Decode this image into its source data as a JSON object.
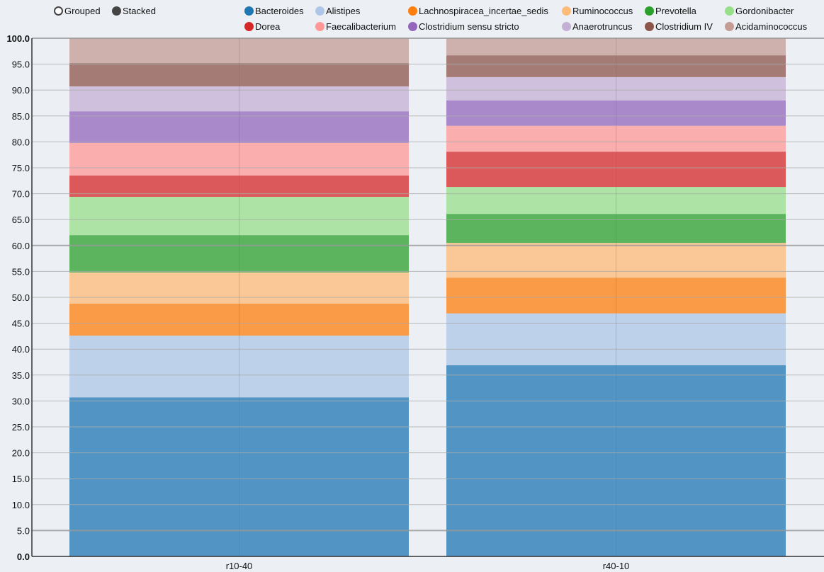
{
  "controls": {
    "grouped_label": "Grouped",
    "stacked_label": "Stacked",
    "selected": "Stacked"
  },
  "chart_data": {
    "type": "bar",
    "stacked": true,
    "categories": [
      "r10-40",
      "r40-10"
    ],
    "ylim": [
      0,
      100
    ],
    "yticks": [
      "0.0",
      "5.0",
      "10.0",
      "15.0",
      "20.0",
      "25.0",
      "30.0",
      "35.0",
      "40.0",
      "45.0",
      "50.0",
      "55.0",
      "60.0",
      "65.0",
      "70.0",
      "75.0",
      "80.0",
      "85.0",
      "90.0",
      "95.0",
      "100.0"
    ],
    "grid": true,
    "legend_position": "top",
    "series": [
      {
        "name": "Bacteroides",
        "color": "#1f77b4",
        "values": [
          30.7,
          36.9
        ]
      },
      {
        "name": "Alistipes",
        "color": "#aec7e8",
        "values": [
          11.9,
          10.0
        ]
      },
      {
        "name": "Lachnospiracea_incertae_sedis",
        "color": "#ff7f0e",
        "values": [
          6.2,
          6.9
        ]
      },
      {
        "name": "Ruminococcus",
        "color": "#ffbb78",
        "values": [
          6.0,
          6.7
        ]
      },
      {
        "name": "Prevotella",
        "color": "#2ca02c",
        "values": [
          7.2,
          5.6
        ]
      },
      {
        "name": "Gordonibacter",
        "color": "#98df8a",
        "values": [
          7.4,
          5.2
        ]
      },
      {
        "name": "Dorea",
        "color": "#d62728",
        "values": [
          4.1,
          6.8
        ]
      },
      {
        "name": "Faecalibacterium",
        "color": "#ff9896",
        "values": [
          6.3,
          5.0
        ]
      },
      {
        "name": "Clostridium sensu stricto",
        "color": "#9467bd",
        "values": [
          6.1,
          4.9
        ]
      },
      {
        "name": "Anaerotruncus",
        "color": "#c5b0d5",
        "values": [
          4.8,
          4.5
        ]
      },
      {
        "name": "Clostridium IV",
        "color": "#8c564b",
        "values": [
          4.5,
          4.2
        ]
      },
      {
        "name": "Acidaminococcus",
        "color": "#c49c94",
        "values": [
          4.8,
          3.3
        ]
      }
    ]
  }
}
